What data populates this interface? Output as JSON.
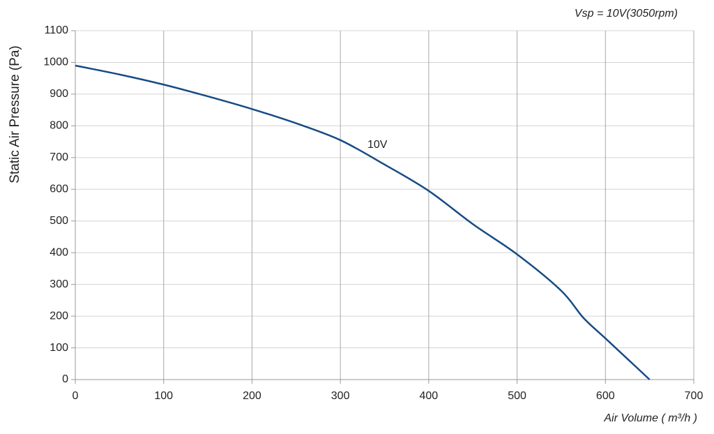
{
  "chart_data": {
    "type": "line",
    "subtitle": "Vsp = 10V(3050rpm)",
    "x_label": "Air Volume ( m³/h )",
    "y_label": "Static Air Pressure  (Pa)",
    "annotation": "10V",
    "x": [
      0,
      50,
      100,
      150,
      200,
      250,
      300,
      350,
      400,
      450,
      500,
      550,
      575,
      600,
      625,
      650
    ],
    "series": [
      {
        "name": "10V",
        "color": "#174b84",
        "values": [
          990,
          962,
          930,
          893,
          853,
          808,
          755,
          678,
          595,
          490,
          395,
          280,
          195,
          130,
          65,
          0
        ]
      }
    ],
    "xlim": [
      0,
      700
    ],
    "xticks": [
      0,
      100,
      200,
      300,
      400,
      500,
      600,
      700
    ],
    "ylim": [
      0,
      1100
    ],
    "yticks": [
      0,
      100,
      200,
      300,
      400,
      500,
      600,
      700,
      800,
      900,
      1000,
      1100
    ],
    "grid": true
  }
}
